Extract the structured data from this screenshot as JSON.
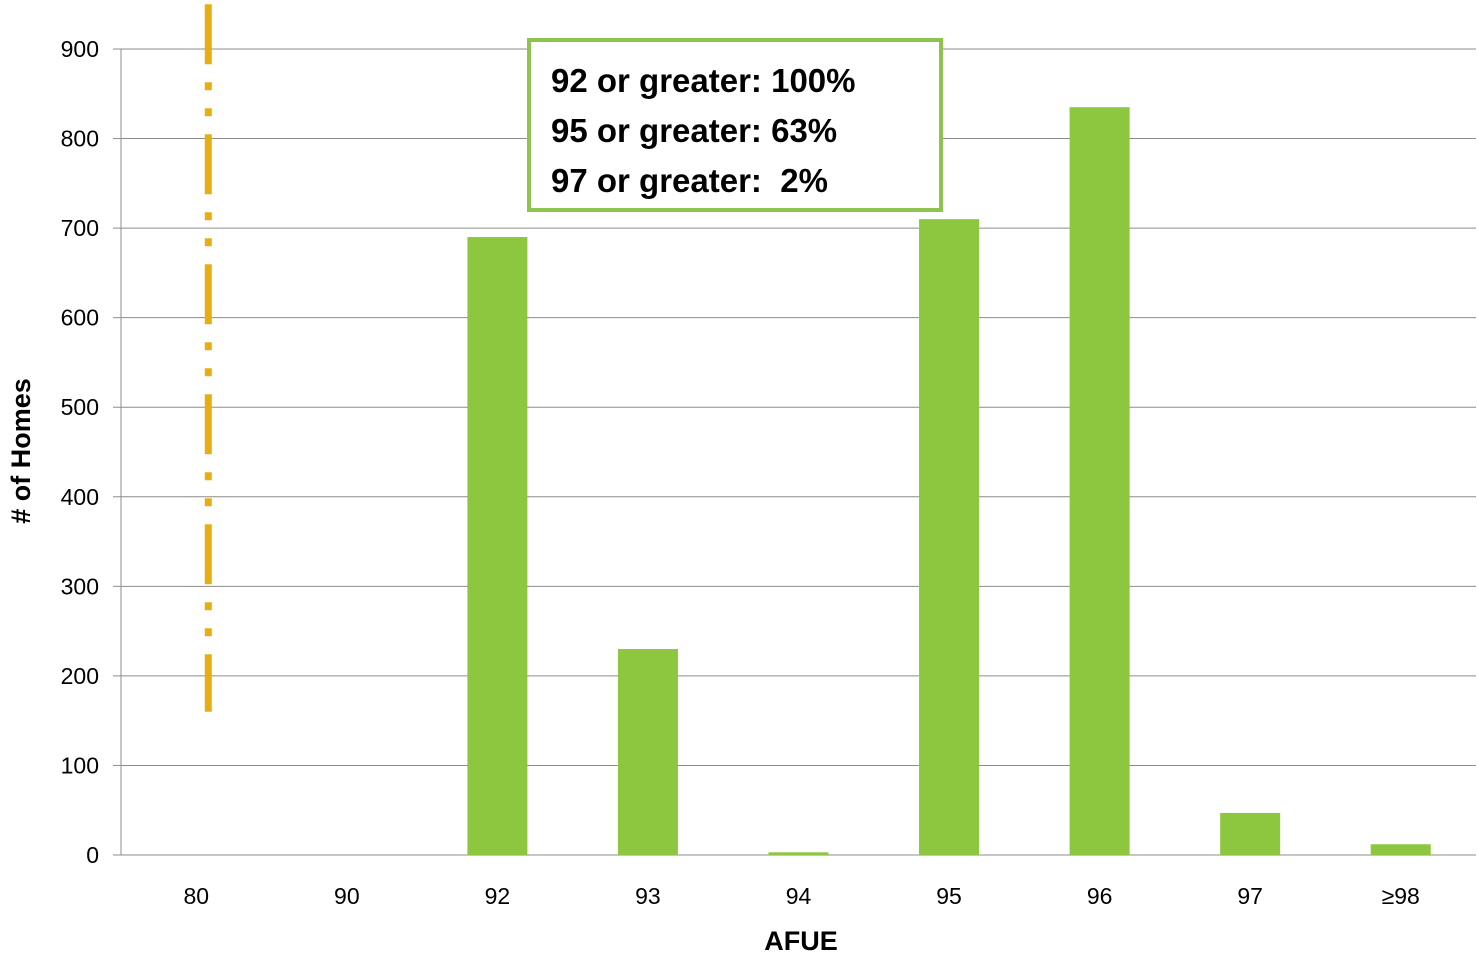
{
  "colors": {
    "bar": "#8dc63f",
    "reference_line": "#e6ae12",
    "box_border": "#8fc34f",
    "grid": "#8c8c8c"
  },
  "annotation": {
    "lines": [
      "92 or greater: 100%",
      "95 or greater: 63%",
      "97 or greater:  2%"
    ]
  },
  "chart_data": {
    "type": "bar",
    "title": "",
    "xlabel": "AFUE",
    "ylabel": "# of Homes",
    "categories": [
      "80",
      "90",
      "92",
      "93",
      "94",
      "95",
      "96",
      "97",
      "≥98"
    ],
    "values": [
      0,
      0,
      690,
      230,
      3,
      710,
      835,
      47,
      12
    ],
    "ylim": [
      0,
      900
    ],
    "yticks": [
      0,
      100,
      200,
      300,
      400,
      500,
      600,
      700,
      800,
      900
    ],
    "grid": true,
    "legend": "none",
    "reference_line": {
      "x_category": "80",
      "style": "dash-dot",
      "y_range": [
        160,
        950
      ]
    }
  }
}
